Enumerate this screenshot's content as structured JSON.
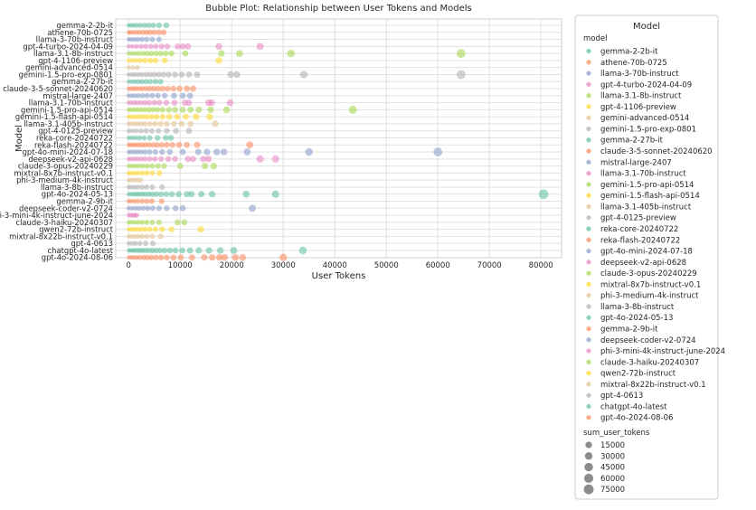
{
  "chart_data": {
    "type": "scatter",
    "title": "Bubble Plot: Relationship between User Tokens and Models",
    "xlabel": "User Tokens",
    "ylabel": "Model",
    "xlim": [
      -2500,
      84000
    ],
    "x_ticks": [
      0,
      10000,
      20000,
      30000,
      40000,
      50000,
      60000,
      70000,
      80000
    ],
    "grid": true,
    "legend_placement": "outside-right",
    "legend_title": "Model",
    "legend_hue_title": "model",
    "legend_size_title": "sum_user_tokens",
    "size_legend": [
      15000,
      30000,
      45000,
      60000,
      75000
    ],
    "categories": [
      "gemma-2-2b-it",
      "athene-70b-0725",
      "llama-3-70b-instruct",
      "gpt-4-turbo-2024-04-09",
      "llama-3.1-8b-instruct",
      "gpt-4-1106-preview",
      "gemini-advanced-0514",
      "gemini-1.5-pro-exp-0801",
      "gemma-2-27b-it",
      "claude-3-5-sonnet-20240620",
      "mistral-large-2407",
      "llama-3.1-70b-instruct",
      "gemini-1.5-pro-api-0514",
      "gemini-1.5-flash-api-0514",
      "llama-3.1-405b-instruct",
      "gpt-4-0125-preview",
      "reka-core-20240722",
      "reka-flash-20240722",
      "gpt-4o-mini-2024-07-18",
      "deepseek-v2-api-0628",
      "claude-3-opus-20240229",
      "mixtral-8x7b-instruct-v0.1",
      "phi-3-medium-4k-instruct",
      "llama-3-8b-instruct",
      "gpt-4o-2024-05-13",
      "gemma-2-9b-it",
      "deepseek-coder-v2-0724",
      "phi-3-mini-4k-instruct-june-2024",
      "claude-3-haiku-20240307",
      "qwen2-72b-instruct",
      "mixtral-8x22b-instruct-v0.1",
      "gpt-4-0613",
      "chatgpt-4o-latest",
      "gpt-4o-2024-08-06"
    ],
    "colors": [
      "#66c2a5",
      "#fc8d62",
      "#8da0cb",
      "#e78ac3",
      "#a6d854",
      "#ffd92f",
      "#e5c494",
      "#b3b3b3",
      "#66c2a5",
      "#fc8d62",
      "#8da0cb",
      "#e78ac3",
      "#a6d854",
      "#ffd92f",
      "#e5c494",
      "#b3b3b3",
      "#66c2a5",
      "#fc8d62",
      "#8da0cb",
      "#e78ac3",
      "#a6d854",
      "#ffd92f",
      "#e5c494",
      "#b3b3b3",
      "#66c2a5",
      "#fc8d62",
      "#8da0cb",
      "#e78ac3",
      "#a6d854",
      "#ffd92f",
      "#e5c494",
      "#b3b3b3",
      "#66c2a5",
      "#fc8d62"
    ],
    "series": [
      {
        "name": "gemma-2-2b-it",
        "values": [
          0,
          500,
          1000,
          1600,
          2300,
          3100,
          3900,
          4800,
          5900,
          7300
        ]
      },
      {
        "name": "athene-70b-0725",
        "values": [
          0,
          400,
          900,
          1500,
          2100,
          2800,
          3500,
          4200,
          5000,
          5900,
          6800
        ]
      },
      {
        "name": "llama-3-70b-instruct",
        "values": [
          0,
          500,
          1100,
          1800,
          2600,
          3500,
          4600,
          5900
        ]
      },
      {
        "name": "gpt-4-turbo-2024-04-09",
        "values": [
          0,
          700,
          1500,
          2400,
          3300,
          4300,
          5300,
          6400,
          7500,
          9500,
          10500,
          11500,
          17500,
          25500
        ]
      },
      {
        "name": "llama-3.1-8b-instruct",
        "values": [
          0,
          600,
          1300,
          2000,
          2800,
          3600,
          4400,
          5300,
          6200,
          7200,
          8300,
          11000,
          18000,
          21500,
          31500,
          64500
        ]
      },
      {
        "name": "gpt-4-1106-preview",
        "values": [
          0,
          700,
          1500,
          2300,
          3200,
          4200,
          5200,
          7000,
          17500
        ]
      },
      {
        "name": "gemini-advanced-0514",
        "values": [
          0,
          800,
          1700
        ]
      },
      {
        "name": "gemini-1.5-pro-exp-0801",
        "values": [
          0,
          600,
          1200,
          1900,
          2600,
          3400,
          4200,
          5000,
          5900,
          6800,
          7800,
          9000,
          10300,
          11700,
          13300,
          19800,
          21000,
          34000,
          64500
        ]
      },
      {
        "name": "gemma-2-27b-it",
        "values": [
          0,
          600,
          1200,
          1900,
          2600,
          3400,
          4200,
          5200,
          6200
        ]
      },
      {
        "name": "claude-3-5-sonnet-20240620",
        "values": [
          0,
          500,
          1000,
          1500,
          2100,
          2700,
          3400,
          4100,
          4900,
          5700,
          6600,
          7600,
          8700,
          9900,
          11300,
          12500
        ]
      },
      {
        "name": "mistral-large-2407",
        "values": [
          0,
          600,
          1200,
          1900,
          2700,
          3600,
          4600,
          5700,
          7000,
          8800,
          10500,
          11900
        ]
      },
      {
        "name": "llama-3.1-70b-instruct",
        "values": [
          0,
          500,
          1100,
          1700,
          2400,
          3200,
          4000,
          5000,
          6000,
          7300,
          8900,
          10900,
          11700,
          15500,
          16100,
          19700
        ]
      },
      {
        "name": "gemini-1.5-pro-api-0514",
        "values": [
          0,
          500,
          1100,
          1700,
          2400,
          3100,
          3900,
          4700,
          5600,
          6600,
          7800,
          9000,
          10500,
          12000,
          13600,
          15900,
          19000,
          43500
        ]
      },
      {
        "name": "gemini-1.5-flash-api-0514",
        "values": [
          0,
          600,
          1200,
          1900,
          2700,
          3500,
          4400,
          5400,
          6600,
          7900,
          9400,
          11100,
          13100,
          15700
        ]
      },
      {
        "name": "llama-3.1-405b-instruct",
        "values": [
          0,
          500,
          1100,
          1700,
          2400,
          3200,
          4100,
          5100,
          6200,
          7400,
          8800,
          10300,
          12000,
          16800
        ]
      },
      {
        "name": "gpt-4-0125-preview",
        "values": [
          0,
          700,
          1500,
          2400,
          3400,
          4500,
          5800,
          7400,
          9200,
          11700
        ]
      },
      {
        "name": "reka-core-20240722",
        "values": [
          0,
          600,
          1300,
          2100,
          3000,
          4100,
          5600,
          7200,
          8200
        ]
      },
      {
        "name": "reka-flash-20240722",
        "values": [
          0,
          400,
          900,
          1400,
          2000,
          2600,
          3200,
          3900,
          4700,
          5500,
          6400,
          7400,
          8500,
          9800,
          11300,
          13300,
          23500
        ]
      },
      {
        "name": "gpt-4o-mini-2024-07-18",
        "values": [
          0,
          500,
          1100,
          1700,
          2400,
          3200,
          4100,
          5200,
          6500,
          8000,
          10500,
          13500,
          15200,
          17100,
          18500,
          23000,
          35000,
          60000
        ]
      },
      {
        "name": "deepseek-v2-api-0628",
        "values": [
          0,
          500,
          1100,
          1700,
          2400,
          3200,
          4100,
          5100,
          6300,
          7700,
          9000,
          11500,
          12500,
          14500,
          15500,
          25500,
          28500
        ]
      },
      {
        "name": "claude-3-opus-20240229",
        "values": [
          0,
          600,
          1200,
          1900,
          2700,
          3600,
          4600,
          5700,
          6900,
          10000,
          14800,
          16500
        ]
      },
      {
        "name": "mixtral-8x7b-instruct-v0.1",
        "values": [
          0,
          500,
          1100,
          1800,
          2600,
          3500,
          4600,
          6000
        ]
      },
      {
        "name": "phi-3-medium-4k-instruct",
        "values": [
          0,
          500,
          1100,
          1700,
          2300
        ]
      },
      {
        "name": "llama-3-8b-instruct",
        "values": [
          0,
          500,
          1100,
          1800,
          2600,
          3500,
          4600,
          6500
        ]
      },
      {
        "name": "gpt-4o-2024-05-13",
        "values": [
          0,
          500,
          1000,
          1500,
          2000,
          2600,
          3200,
          3900,
          4600,
          5400,
          6300,
          7300,
          8400,
          9700,
          11300,
          12200,
          14100,
          16200,
          22800,
          28500,
          80500
        ]
      },
      {
        "name": "gemma-2-9b-it",
        "values": [
          0,
          500,
          1100,
          1800,
          2600,
          3500,
          4500,
          6400
        ]
      },
      {
        "name": "deepseek-coder-v2-0724",
        "values": [
          0,
          600,
          1300,
          2000,
          2800,
          3700,
          4700,
          5900,
          7400,
          9100,
          10500,
          24000
        ]
      },
      {
        "name": "phi-3-mini-4k-instruct-june-2024",
        "values": [
          0,
          400,
          800,
          1200,
          1600
        ]
      },
      {
        "name": "claude-3-haiku-20240307",
        "values": [
          0,
          500,
          1100,
          1800,
          2600,
          3500,
          4600,
          5900,
          9500,
          10800
        ]
      },
      {
        "name": "qwen2-72b-instruct",
        "values": [
          0,
          500,
          1100,
          1700,
          2400,
          3200,
          4100,
          5200,
          6500,
          8300,
          14000
        ]
      },
      {
        "name": "mixtral-8x22b-instruct-v0.1",
        "values": [
          0,
          500,
          1100,
          1800,
          2600,
          3500,
          4600,
          6200
        ]
      },
      {
        "name": "gpt-4-0613",
        "values": [
          0,
          600,
          1300,
          2200,
          3300,
          4700
        ]
      },
      {
        "name": "chatgpt-4o-latest",
        "values": [
          0,
          400,
          800,
          1200,
          1700,
          2200,
          2700,
          3300,
          3900,
          4600,
          5300,
          6100,
          7000,
          8000,
          9100,
          10400,
          11900,
          13600,
          15600,
          17800,
          20400,
          33800
        ]
      },
      {
        "name": "gpt-4o-2024-08-06",
        "values": [
          0,
          500,
          1000,
          1600,
          2200,
          2900,
          3600,
          4400,
          5300,
          6300,
          7400,
          8700,
          10100,
          12300,
          14700,
          16200,
          17600,
          18600,
          20700,
          22100,
          30000
        ]
      }
    ]
  }
}
